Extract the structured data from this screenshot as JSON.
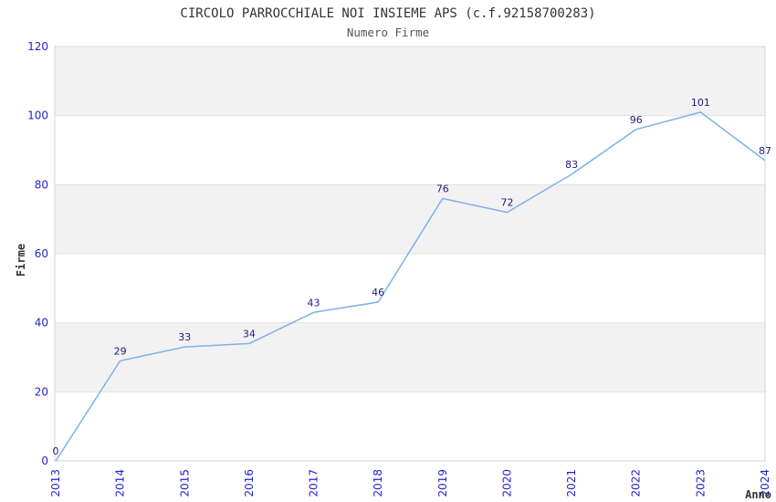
{
  "chart_data": {
    "type": "line",
    "title": "CIRCOLO PARROCCHIALE NOI INSIEME APS (c.f.92158700283)",
    "subtitle": "Numero Firme",
    "xlabel": "Anno",
    "ylabel": "Firme",
    "categories": [
      "2013",
      "2014",
      "2015",
      "2016",
      "2017",
      "2018",
      "2019",
      "2020",
      "2021",
      "2022",
      "2023",
      "2024"
    ],
    "series": [
      {
        "name": "Numero Firme",
        "values": [
          0,
          29,
          33,
          34,
          43,
          46,
          76,
          72,
          83,
          96,
          101,
          87
        ]
      }
    ],
    "ylim": [
      0,
      120
    ],
    "yticks": [
      0,
      20,
      40,
      60,
      80,
      100,
      120
    ],
    "grid": true,
    "legend": false,
    "bands_gray": [
      [
        20,
        40
      ],
      [
        60,
        80
      ],
      [
        100,
        120
      ]
    ],
    "colors": {
      "line": "#7FB0E8",
      "tick_label": "#2323CC",
      "data_label": "#1D1D78",
      "title": "#333333",
      "subtitle": "#555555",
      "axis_label": "#333333",
      "band": "#F2F2F2",
      "gridline": "#E2E2E2",
      "plot_border": "#D4D4D4",
      "background": "#FFFFFF"
    }
  }
}
